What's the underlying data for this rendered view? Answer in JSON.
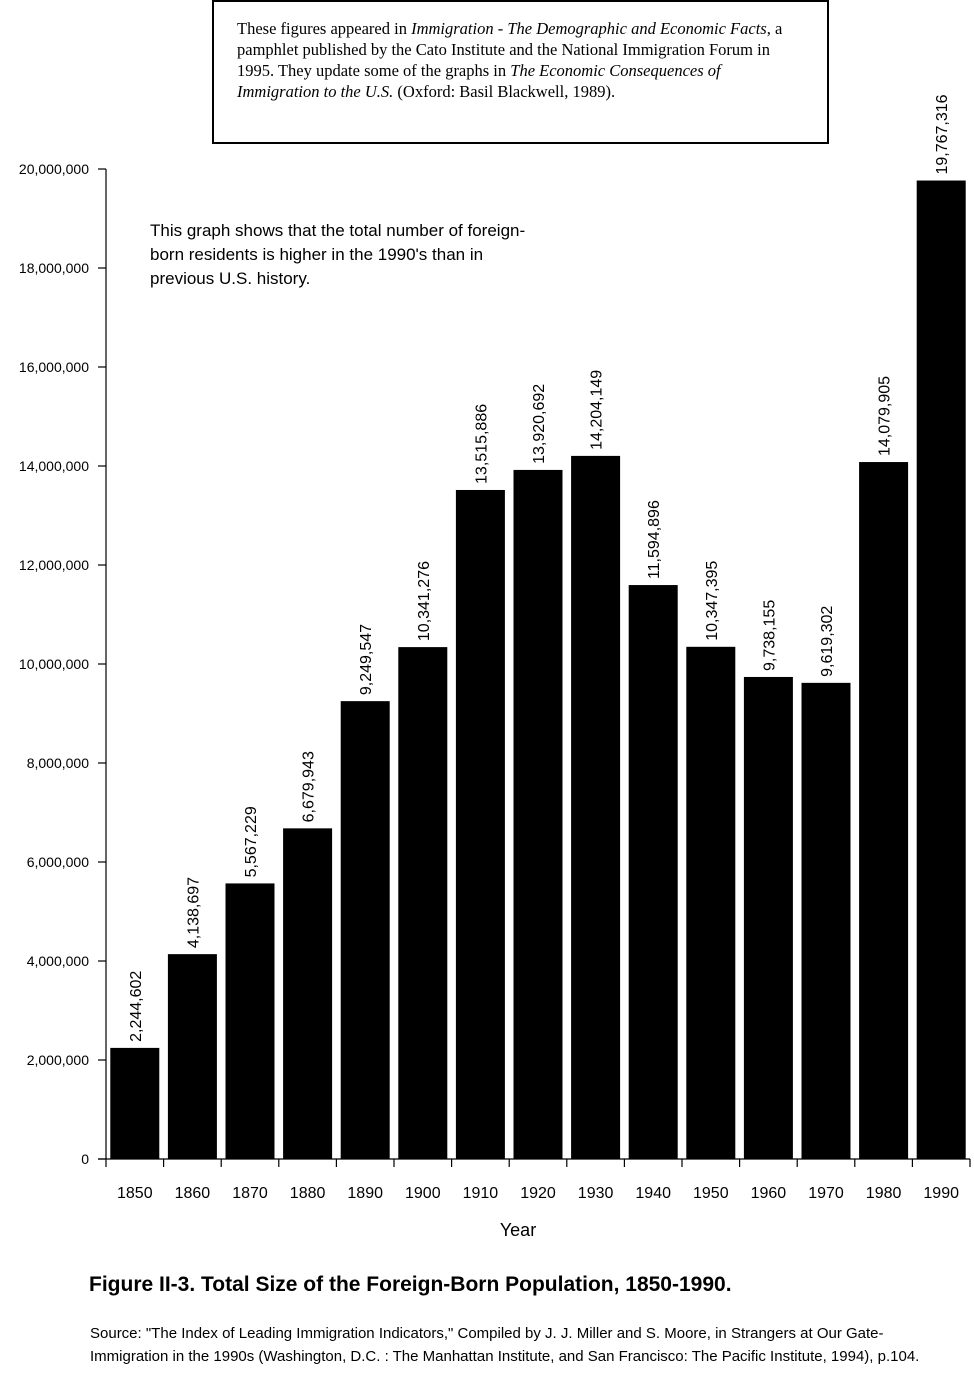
{
  "note": {
    "part1": "These figures appeared in ",
    "title1": "Immigration - The Demographic and Economic Facts",
    "part2": ", a pamphlet published by the Cato Institute and the National Immigration Forum in 1995. They update some of the graphs in ",
    "title2": "The Economic Consequences of Immigration to the U.S.",
    "part3": " (Oxford: Basil Blackwell, 1989)."
  },
  "annotation": "This graph shows that the total number of foreign-born residents is higher in the 1990's than in previous U.S. history.",
  "caption": "Figure II-3. Total Size of the Foreign-Born Population, 1850-1990.",
  "source": "Source:  \"The Index of Leading Immigration Indicators,\" Compiled by J. J. Miller and S. Moore, in Strangers at Our Gate-Immigration in the 1990s (Washington, D.C. : The Manhattan Institute, and San Francisco: The Pacific Institute, 1994), p.104.",
  "chart_data": {
    "type": "bar",
    "xlabel": "Year",
    "ylabel": "",
    "ylim": [
      0,
      20000000
    ],
    "yticks": [
      0,
      2000000,
      4000000,
      6000000,
      8000000,
      10000000,
      12000000,
      14000000,
      16000000,
      18000000,
      20000000
    ],
    "ytick_labels": [
      "0",
      "2,000,000",
      "4,000,000",
      "6,000,000",
      "8,000,000",
      "10,000,000",
      "12,000,000",
      "14,000,000",
      "16,000,000",
      "18,000,000",
      "20,000,000"
    ],
    "categories": [
      "1850",
      "1860",
      "1870",
      "1880",
      "1890",
      "1900",
      "1910",
      "1920",
      "1930",
      "1940",
      "1950",
      "1960",
      "1970",
      "1980",
      "1990"
    ],
    "values": [
      2244602,
      4138697,
      5567229,
      6679943,
      9249547,
      10341276,
      13515886,
      13920692,
      14204149,
      11594896,
      10347395,
      9738155,
      9619302,
      14079905,
      19767316
    ],
    "value_labels": [
      "2,244,602",
      "4,138,697",
      "5,567,229",
      "6,679,943",
      "9,249,547",
      "10,341,276",
      "13,515,886",
      "13,920,692",
      "14,204,149",
      "11,594,896",
      "10,347,395",
      "9,738,155",
      "9,619,302",
      "14,079,905",
      "19,767,316"
    ],
    "bar_color": "#000000",
    "grid": false,
    "legend": "none"
  }
}
